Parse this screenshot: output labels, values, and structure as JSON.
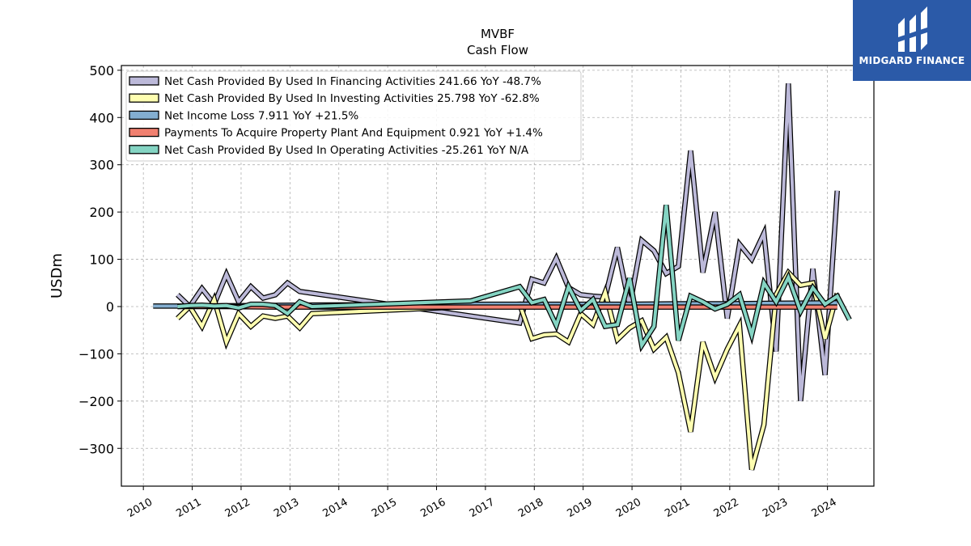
{
  "title": "MVBF",
  "subtitle": "Cash Flow",
  "logo": {
    "text": "MIDGARD FINANCE",
    "bg": "#2b5aa8"
  },
  "chart_data": {
    "type": "line",
    "ylabel": "USDm",
    "xlim": [
      2009.55,
      2024.95
    ],
    "ylim": [
      -380,
      510
    ],
    "yticks": [
      -300,
      -200,
      -100,
      0,
      100,
      200,
      300,
      400,
      500
    ],
    "xticks": [
      "2010",
      "2011",
      "2012",
      "2013",
      "2014",
      "2015",
      "2016",
      "2017",
      "2018",
      "2019",
      "2020",
      "2021",
      "2022",
      "2023",
      "2024"
    ],
    "grid": true,
    "legend_position": "top-left",
    "series": [
      {
        "name": "Net Cash Provided By Used In Financing Activities  241.66 YoY -48.7%",
        "color": "#bcb9d9",
        "points": [
          [
            2010.7,
            25
          ],
          [
            2010.95,
            0
          ],
          [
            2011.2,
            38
          ],
          [
            2011.45,
            5
          ],
          [
            2011.7,
            68
          ],
          [
            2011.95,
            10
          ],
          [
            2012.2,
            42
          ],
          [
            2012.45,
            18
          ],
          [
            2012.7,
            25
          ],
          [
            2012.95,
            50
          ],
          [
            2013.2,
            32
          ],
          [
            2017.7,
            -35
          ],
          [
            2017.95,
            58
          ],
          [
            2018.2,
            50
          ],
          [
            2018.45,
            102
          ],
          [
            2018.7,
            40
          ],
          [
            2018.95,
            25
          ],
          [
            2019.2,
            22
          ],
          [
            2019.45,
            20
          ],
          [
            2019.7,
            125
          ],
          [
            2019.95,
            0
          ],
          [
            2020.2,
            140
          ],
          [
            2020.45,
            118
          ],
          [
            2020.7,
            70
          ],
          [
            2020.95,
            85
          ],
          [
            2021.2,
            330
          ],
          [
            2021.45,
            72
          ],
          [
            2021.7,
            200
          ],
          [
            2021.95,
            -25
          ],
          [
            2022.2,
            132
          ],
          [
            2022.45,
            100
          ],
          [
            2022.7,
            155
          ],
          [
            2022.95,
            -95
          ],
          [
            2023.2,
            472
          ],
          [
            2023.45,
            -200
          ],
          [
            2023.7,
            80
          ],
          [
            2023.95,
            -145
          ],
          [
            2024.2,
            245
          ]
        ]
      },
      {
        "name": "Net Cash Provided By Used In Investing Activities  25.798 YoY -62.8%",
        "color": "#fefeb0",
        "points": [
          [
            2010.7,
            -25
          ],
          [
            2010.95,
            0
          ],
          [
            2011.2,
            -42
          ],
          [
            2011.45,
            15
          ],
          [
            2011.7,
            -75
          ],
          [
            2011.95,
            -15
          ],
          [
            2012.2,
            -42
          ],
          [
            2012.45,
            -20
          ],
          [
            2012.7,
            -25
          ],
          [
            2012.95,
            -20
          ],
          [
            2013.2,
            -45
          ],
          [
            2013.45,
            -15
          ],
          [
            2017.7,
            5
          ],
          [
            2017.95,
            -68
          ],
          [
            2018.2,
            -60
          ],
          [
            2018.45,
            -58
          ],
          [
            2018.7,
            -75
          ],
          [
            2018.95,
            -15
          ],
          [
            2019.2,
            -38
          ],
          [
            2019.45,
            30
          ],
          [
            2019.7,
            -70
          ],
          [
            2019.95,
            -45
          ],
          [
            2020.2,
            -30
          ],
          [
            2020.45,
            -90
          ],
          [
            2020.7,
            -65
          ],
          [
            2020.95,
            -140
          ],
          [
            2021.2,
            -265
          ],
          [
            2021.45,
            -75
          ],
          [
            2021.7,
            -150
          ],
          [
            2021.95,
            -90
          ],
          [
            2022.2,
            -40
          ],
          [
            2022.45,
            -345
          ],
          [
            2022.7,
            -250
          ],
          [
            2022.95,
            25
          ],
          [
            2023.2,
            72
          ],
          [
            2023.45,
            45
          ],
          [
            2023.7,
            50
          ],
          [
            2023.95,
            -68
          ],
          [
            2024.2,
            28
          ]
        ]
      },
      {
        "name": "Net Income Loss  7.911 YoY +21.5%",
        "color": "#83aed0",
        "points": [
          [
            2010.2,
            1
          ],
          [
            2010.7,
            1
          ],
          [
            2012.2,
            2
          ],
          [
            2013.2,
            3
          ],
          [
            2014.2,
            3.5
          ],
          [
            2015.2,
            4
          ],
          [
            2016.2,
            4.5
          ],
          [
            2017.2,
            5
          ],
          [
            2017.95,
            5
          ],
          [
            2018.95,
            5
          ],
          [
            2019.95,
            5
          ],
          [
            2020.95,
            6
          ],
          [
            2021.95,
            6
          ],
          [
            2022.95,
            7
          ],
          [
            2024.2,
            7.9
          ]
        ]
      },
      {
        "name": "Payments To Acquire Property Plant And Equipment  0.921 YoY +1.4%",
        "color": "#f08070",
        "points": [
          [
            2010.7,
            0
          ],
          [
            2011.7,
            0
          ],
          [
            2012.7,
            -1
          ],
          [
            2013.7,
            -1
          ],
          [
            2014.7,
            -1
          ],
          [
            2015.7,
            -1
          ],
          [
            2016.7,
            -1
          ],
          [
            2017.7,
            -1
          ],
          [
            2018.7,
            -1
          ],
          [
            2019.7,
            -1
          ],
          [
            2020.7,
            -1
          ],
          [
            2021.7,
            -1
          ],
          [
            2022.7,
            -1
          ],
          [
            2023.7,
            -1
          ],
          [
            2024.2,
            -1
          ]
        ]
      },
      {
        "name": "Net Cash Provided By Used In Operating Activities  -25.261 YoY N/A",
        "color": "#84d4c3",
        "points": [
          [
            2010.7,
            0
          ],
          [
            2010.95,
            2
          ],
          [
            2011.2,
            3
          ],
          [
            2011.45,
            1
          ],
          [
            2011.7,
            2
          ],
          [
            2011.95,
            -3
          ],
          [
            2012.2,
            5
          ],
          [
            2012.45,
            5
          ],
          [
            2012.7,
            2
          ],
          [
            2012.95,
            -15
          ],
          [
            2013.2,
            10
          ],
          [
            2013.45,
            0
          ],
          [
            2016.7,
            12
          ],
          [
            2017.7,
            42
          ],
          [
            2017.95,
            8
          ],
          [
            2018.2,
            15
          ],
          [
            2018.45,
            -40
          ],
          [
            2018.7,
            42
          ],
          [
            2018.95,
            -8
          ],
          [
            2019.2,
            15
          ],
          [
            2019.45,
            -42
          ],
          [
            2019.7,
            -38
          ],
          [
            2019.95,
            60
          ],
          [
            2020.2,
            -82
          ],
          [
            2020.45,
            -42
          ],
          [
            2020.7,
            215
          ],
          [
            2020.95,
            -72
          ],
          [
            2021.2,
            22
          ],
          [
            2021.45,
            10
          ],
          [
            2021.7,
            -5
          ],
          [
            2021.95,
            5
          ],
          [
            2022.2,
            25
          ],
          [
            2022.45,
            -60
          ],
          [
            2022.7,
            50
          ],
          [
            2022.95,
            10
          ],
          [
            2023.2,
            62
          ],
          [
            2023.45,
            -10
          ],
          [
            2023.7,
            40
          ],
          [
            2023.95,
            5
          ],
          [
            2024.2,
            22
          ],
          [
            2024.45,
            -28
          ]
        ]
      }
    ]
  }
}
